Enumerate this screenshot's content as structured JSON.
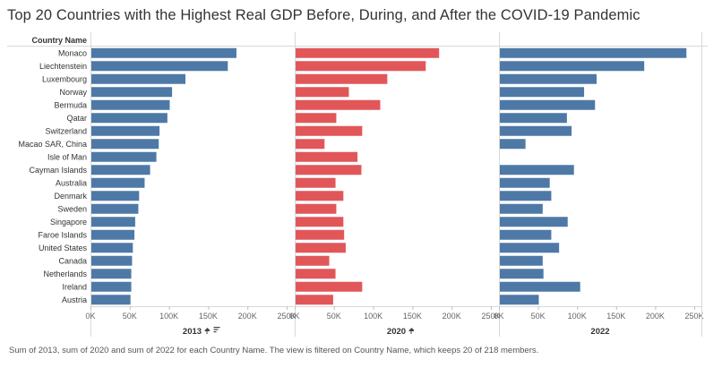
{
  "title": "Top 20 Countries with the Highest Real GDP Before, During, and After the COVID-19 Pandemic",
  "row_header": "Country Name",
  "footnote": "Sum of 2013, sum of 2020 and sum of 2022 for each Country Name. The view is filtered on Country Name, which keeps 20 of 218 members.",
  "colors": {
    "blue": "#4e79a7",
    "red": "#e15759"
  },
  "chart_data": {
    "type": "bar",
    "orientation": "horizontal",
    "categories": [
      "Monaco",
      "Liechtenstein",
      "Luxembourg",
      "Norway",
      "Bermuda",
      "Qatar",
      "Switzerland",
      "Macao SAR, China",
      "Isle of Man",
      "Cayman Islands",
      "Australia",
      "Denmark",
      "Sweden",
      "Singapore",
      "Faroe Islands",
      "United States",
      "Canada",
      "Netherlands",
      "Ireland",
      "Austria"
    ],
    "series": [
      {
        "name": "2013",
        "pinned": true,
        "sorted": true,
        "color": "#4e79a7",
        "values": [
          186000,
          175000,
          121000,
          104000,
          101000,
          98000,
          88000,
          87000,
          84000,
          76000,
          69000,
          62000,
          61000,
          57000,
          56000,
          54000,
          53000,
          52000,
          52000,
          51000
        ]
      },
      {
        "name": "2020",
        "pinned": true,
        "sorted": false,
        "color": "#e15759",
        "values": [
          184000,
          167000,
          118000,
          69000,
          109000,
          53000,
          86000,
          38000,
          80000,
          85000,
          52000,
          62000,
          53000,
          62000,
          63000,
          65000,
          44000,
          52000,
          86000,
          49000
        ]
      },
      {
        "name": "2022",
        "pinned": false,
        "sorted": false,
        "color": "#4e79a7",
        "values": [
          240000,
          186000,
          125000,
          109000,
          123000,
          87000,
          93000,
          34000,
          null,
          96000,
          65000,
          67000,
          56000,
          88000,
          67000,
          77000,
          56000,
          57000,
          104000,
          51000
        ]
      }
    ],
    "xticks": [
      "0K",
      "50K",
      "100K",
      "150K",
      "200K",
      "250K"
    ],
    "xlim": [
      0,
      250000
    ],
    "grid": false
  }
}
